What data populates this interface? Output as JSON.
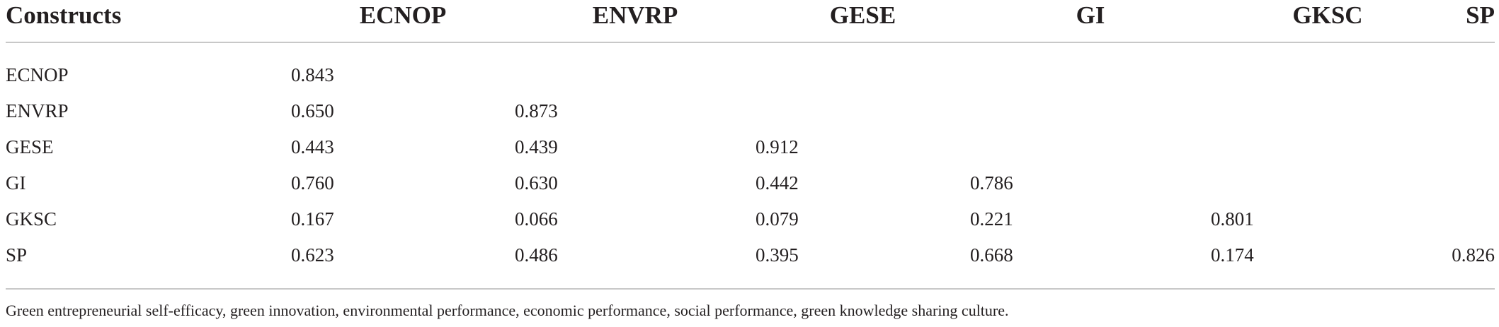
{
  "table": {
    "columns": [
      "Constructs",
      "ECNOP",
      "ENVRP",
      "GESE",
      "GI",
      "GKSC",
      "SP"
    ],
    "rows": [
      [
        "ECNOP",
        "0.843",
        "",
        "",
        "",
        "",
        ""
      ],
      [
        "ENVRP",
        "0.650",
        "0.873",
        "",
        "",
        "",
        ""
      ],
      [
        "GESE",
        "0.443",
        "0.439",
        "0.912",
        "",
        "",
        ""
      ],
      [
        "GI",
        "0.760",
        "0.630",
        "0.442",
        "0.786",
        "",
        ""
      ],
      [
        "GKSC",
        "0.167",
        "0.066",
        "0.079",
        "0.221",
        "0.801",
        ""
      ],
      [
        "SP",
        "0.623",
        "0.486",
        "0.395",
        "0.668",
        "0.174",
        "0.826"
      ]
    ]
  },
  "footnote": "Green entrepreneurial self-efficacy, green innovation, environmental performance, economic performance, social performance, green knowledge sharing culture."
}
